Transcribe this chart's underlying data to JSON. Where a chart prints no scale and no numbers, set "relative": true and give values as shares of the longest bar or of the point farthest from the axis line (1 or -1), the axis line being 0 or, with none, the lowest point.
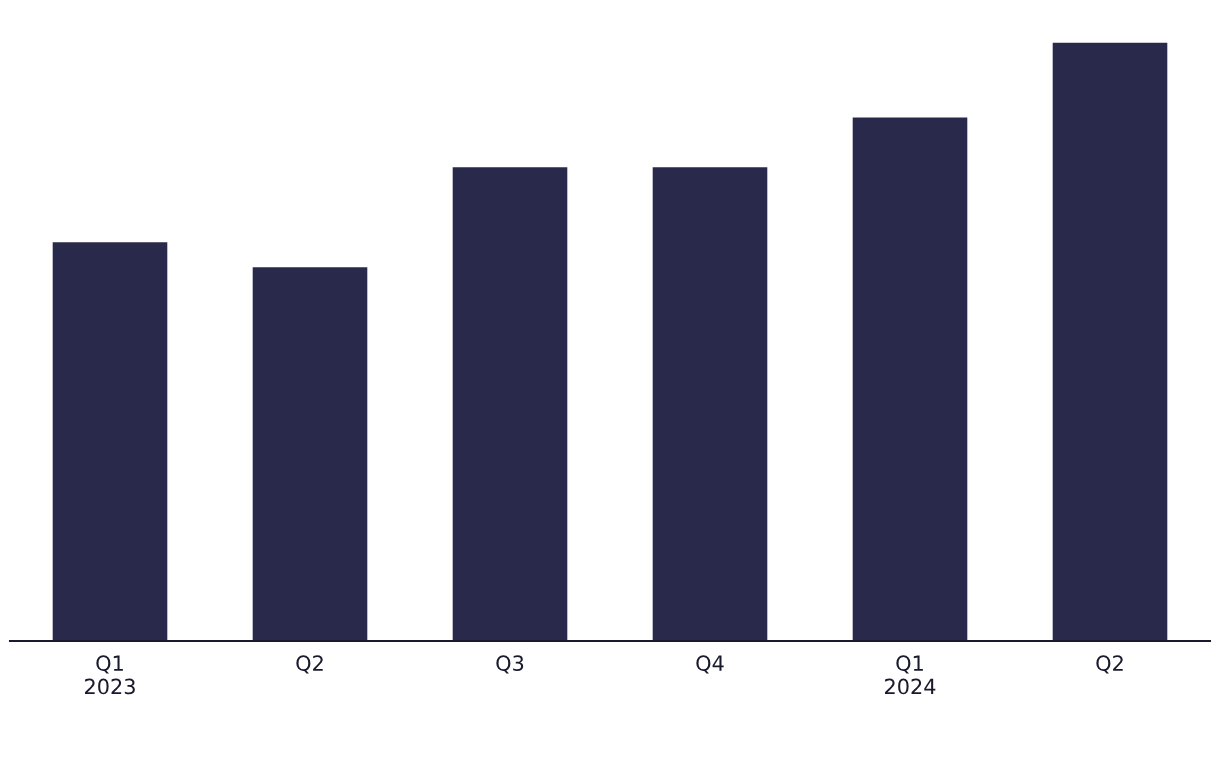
{
  "chart_data": {
    "type": "bar",
    "relative": true,
    "categories": [
      "Q1\n2023",
      "Q2",
      "Q3",
      "Q4",
      "Q1\n2024",
      "Q2"
    ],
    "values": [
      0.667,
      0.625,
      0.792,
      0.792,
      0.875,
      1
    ],
    "color": "#29294b",
    "grid": false,
    "legend": false
  }
}
